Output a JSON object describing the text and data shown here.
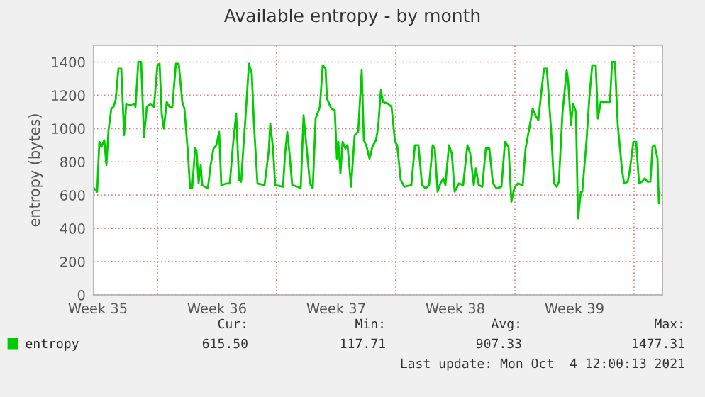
{
  "chart_data": {
    "type": "line",
    "title": "Available entropy - by month",
    "ylabel": "entropy (bytes)",
    "xlim": [
      "2021-09-01T06:00",
      "2021-10-04T16:00"
    ],
    "ylim": [
      0,
      1500
    ],
    "xticks": [
      {
        "value": "2021-09-01T12:00",
        "label": "Week 35"
      },
      {
        "value": "2021-09-05",
        "label": null
      },
      {
        "value": "2021-09-08T12:00",
        "label": "Week 36"
      },
      {
        "value": "2021-09-12",
        "label": null
      },
      {
        "value": "2021-09-15T12:00",
        "label": "Week 37"
      },
      {
        "value": "2021-09-19",
        "label": null
      },
      {
        "value": "2021-09-22T12:00",
        "label": "Week 38"
      },
      {
        "value": "2021-09-26",
        "label": null
      },
      {
        "value": "2021-09-29T12:00",
        "label": "Week 39"
      },
      {
        "value": "2021-10-03",
        "label": null
      }
    ],
    "yticks": [
      0,
      200,
      400,
      600,
      800,
      1000,
      1200,
      1400
    ],
    "grid": true,
    "legend": "bottom",
    "marker": "none",
    "line_style": "solid",
    "annotations": [
      "Cur:",
      "615.50",
      "Min:",
      "117.71",
      "Avg:",
      "907.33",
      "Max:",
      "1477.31",
      "Last update: Mon Oct  4 12:00:13 2021"
    ],
    "series": [
      {
        "name": "entropy",
        "color": "#00cc00",
        "x": [
          "2021-09-01T07:00",
          "2021-09-01T11:00",
          "2021-09-01T14:00",
          "2021-09-01T17:00",
          "2021-09-01T21:00",
          "2021-09-02T00:00",
          "2021-09-02T03:00",
          "2021-09-02T07:00",
          "2021-09-02T10:00",
          "2021-09-02T13:00",
          "2021-09-02T17:00",
          "2021-09-02T21:00",
          "2021-09-03T01:00",
          "2021-09-03T04:00",
          "2021-09-03T09:00",
          "2021-09-03T15:00",
          "2021-09-03T17:00",
          "2021-09-03T21:00",
          "2021-09-04T01:00",
          "2021-09-04T05:00",
          "2021-09-04T09:00",
          "2021-09-04T14:00",
          "2021-09-04T19:00",
          "2021-09-05T00:00",
          "2021-09-05T03:00",
          "2021-09-05T06:00",
          "2021-09-05T09:00",
          "2021-09-05T13:00",
          "2021-09-05T17:00",
          "2021-09-05T21:00",
          "2021-09-06T02:00",
          "2021-09-06T06:00",
          "2021-09-06T11:00",
          "2021-09-06T14:00",
          "2021-09-06T19:00",
          "2021-09-06T22:00",
          "2021-09-07T01:00",
          "2021-09-07T05:00",
          "2021-09-07T07:00",
          "2021-09-07T10:00",
          "2021-09-07T13:00",
          "2021-09-07T15:00",
          "2021-09-07T23:00",
          "2021-09-08T03:00",
          "2021-09-08T07:00",
          "2021-09-08T11:00",
          "2021-09-08T15:00",
          "2021-09-08T18:00",
          "2021-09-09T02:00",
          "2021-09-09T06:00",
          "2021-09-09T10:00",
          "2021-09-09T15:00",
          "2021-09-09T19:00",
          "2021-09-09T22:00",
          "2021-09-10T01:00",
          "2021-09-10T04:00",
          "2021-09-10T09:00",
          "2021-09-10T13:00",
          "2021-09-10T16:00",
          "2021-09-10T21:00",
          "2021-09-11T07:00",
          "2021-09-11T13:00",
          "2021-09-11T15:00",
          "2021-09-11T19:00",
          "2021-09-11T22:00",
          "2021-09-12T09:00",
          "2021-09-12T12:00",
          "2021-09-12T15:00",
          "2021-09-12T18:00",
          "2021-09-12T22:00",
          "2021-09-13T06:00",
          "2021-09-13T10:00",
          "2021-09-13T14:00",
          "2021-09-13T18:00",
          "2021-09-13T23:00",
          "2021-09-14T03:00",
          "2021-09-14T07:00",
          "2021-09-14T13:00",
          "2021-09-14T17:00",
          "2021-09-14T21:00",
          "2021-09-14T23:00",
          "2021-09-15T05:00",
          "2021-09-15T10:00",
          "2021-09-15T13:00",
          "2021-09-15T15:00",
          "2021-09-15T18:00",
          "2021-09-15T21:00",
          "2021-09-16T01:00",
          "2021-09-16T04:00",
          "2021-09-16T09:00",
          "2021-09-16T14:00",
          "2021-09-16T19:00",
          "2021-09-17T00:00",
          "2021-09-17T03:00",
          "2021-09-17T07:00",
          "2021-09-17T11:00",
          "2021-09-17T15:00",
          "2021-09-17T20:00",
          "2021-09-17T23:00",
          "2021-09-18T03:00",
          "2021-09-18T06:00",
          "2021-09-18T13:00",
          "2021-09-18T18:00",
          "2021-09-18T23:00",
          "2021-09-19T02:00",
          "2021-09-19T07:00",
          "2021-09-19T12:00",
          "2021-09-19T22:00",
          "2021-09-20T03:00",
          "2021-09-20T08:00",
          "2021-09-20T13:00",
          "2021-09-20T18:00",
          "2021-09-20T23:00",
          "2021-09-21T04:00",
          "2021-09-21T07:00",
          "2021-09-21T11:00",
          "2021-09-21T15:00",
          "2021-09-21T19:00",
          "2021-09-21T22:00",
          "2021-09-22T03:00",
          "2021-09-22T07:00",
          "2021-09-22T11:00",
          "2021-09-22T17:00",
          "2021-09-22T23:00",
          "2021-09-23T05:00",
          "2021-09-23T09:00",
          "2021-09-23T14:00",
          "2021-09-23T17:00",
          "2021-09-23T21:00",
          "2021-09-24T02:00",
          "2021-09-24T07:00",
          "2021-09-24T12:00",
          "2021-09-24T17:00",
          "2021-09-24T22:00",
          "2021-09-25T05:00",
          "2021-09-25T10:00",
          "2021-09-25T15:00",
          "2021-09-25T19:00",
          "2021-09-25T23:00",
          "2021-09-26T04:00",
          "2021-09-26T11:00",
          "2021-09-26T15:00",
          "2021-09-26T21:00",
          "2021-09-27T01:00",
          "2021-09-27T05:00",
          "2021-09-27T09:00",
          "2021-09-27T13:00",
          "2021-09-27T17:00",
          "2021-09-27T21:00",
          "2021-09-28T03:00",
          "2021-09-28T07:00",
          "2021-09-28T11:00",
          "2021-09-28T14:00",
          "2021-09-28T19:00",
          "2021-09-29T01:00",
          "2021-09-29T03:00",
          "2021-09-29T07:00",
          "2021-09-29T10:00",
          "2021-09-29T14:00",
          "2021-09-29T17:00",
          "2021-09-29T21:00",
          "2021-09-29T23:00",
          "2021-09-30T05:00",
          "2021-09-30T09:00",
          "2021-09-30T13:00",
          "2021-09-30T18:00",
          "2021-09-30T21:00",
          "2021-10-01T01:00",
          "2021-10-01T09:00",
          "2021-10-01T14:00",
          "2021-10-01T17:00",
          "2021-10-01T21:00",
          "2021-10-02T01:00",
          "2021-10-02T07:00",
          "2021-10-02T10:00",
          "2021-10-02T15:00",
          "2021-10-02T18:00",
          "2021-10-02T23:00",
          "2021-10-03T03:00",
          "2021-10-03T07:00",
          "2021-10-03T11:00",
          "2021-10-03T15:00",
          "2021-10-03T19:00",
          "2021-10-03T23:00",
          "2021-10-04T02:00",
          "2021-10-04T05:00",
          "2021-10-04T09:00",
          "2021-10-04T11:00",
          "2021-10-04T12:00"
        ],
        "values": [
          640,
          620,
          920,
          890,
          930,
          780,
          990,
          1120,
          1130,
          1170,
          1360,
          1360,
          960,
          1150,
          1140,
          1150,
          1130,
          1400,
          1400,
          950,
          1130,
          1150,
          1130,
          1380,
          1390,
          1090,
          1000,
          1160,
          1130,
          1130,
          1390,
          1390,
          1160,
          1120,
          850,
          640,
          640,
          880,
          870,
          670,
          780,
          660,
          640,
          780,
          880,
          900,
          980,
          660,
          670,
          670,
          880,
          1090,
          690,
          680,
          880,
          1060,
          1390,
          1330,
          1030,
          670,
          660,
          870,
          1030,
          880,
          660,
          650,
          850,
          980,
          860,
          660,
          650,
          640,
          1080,
          900,
          670,
          640,
          1060,
          1130,
          1380,
          1360,
          1180,
          1120,
          1110,
          820,
          920,
          730,
          920,
          880,
          900,
          650,
          960,
          980,
          1350,
          930,
          890,
          820,
          890,
          930,
          1000,
          1230,
          1160,
          1150,
          1130,
          920,
          900,
          690,
          650,
          660,
          900,
          900,
          660,
          640,
          660,
          900,
          880,
          620,
          670,
          700,
          660,
          900,
          850,
          620,
          670,
          660,
          900,
          850,
          660,
          760,
          660,
          650,
          880,
          880,
          670,
          640,
          650,
          920,
          890,
          560,
          640,
          670,
          660,
          880,
          1020,
          1120,
          1080,
          1050,
          1210,
          1360,
          1360,
          990,
          670,
          650,
          680,
          1090,
          1350,
          1290,
          1020,
          1150,
          1100,
          460,
          620,
          620,
          930,
          1190,
          1380,
          1380,
          1060,
          1160,
          1160,
          1160,
          1400,
          1400,
          1020,
          750,
          670,
          680,
          750,
          920,
          920,
          670,
          680,
          700,
          680,
          680,
          890,
          900,
          820,
          550,
          620
        ]
      }
    ]
  }
}
